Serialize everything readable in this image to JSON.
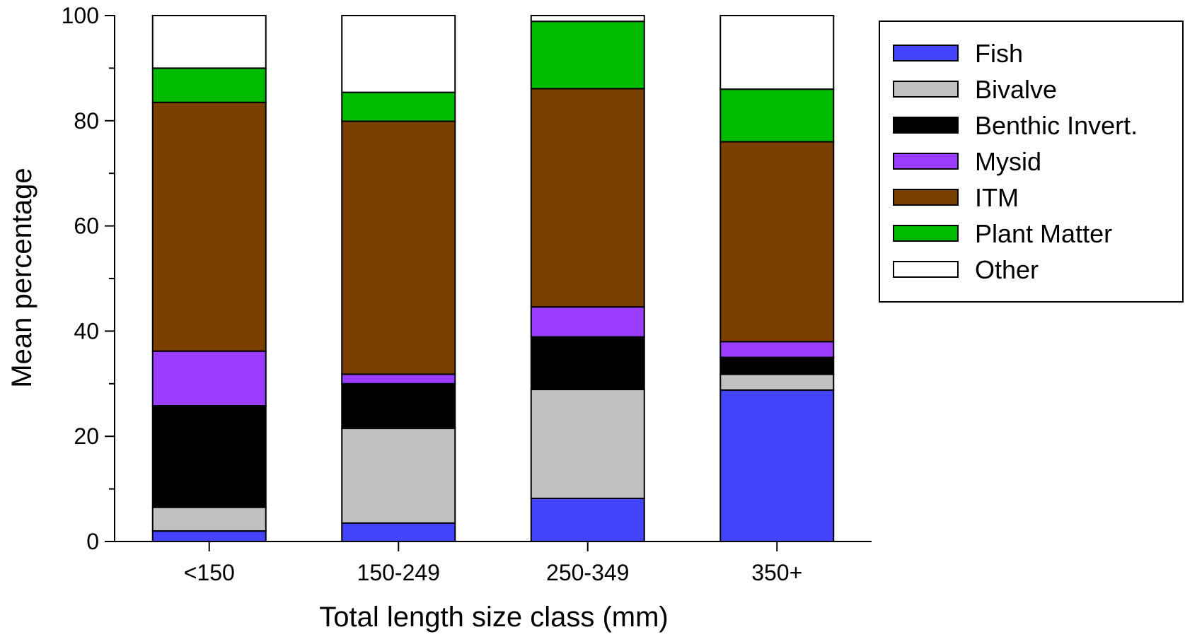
{
  "chart_data": {
    "type": "bar",
    "stacked": true,
    "title": "",
    "xlabel": "Total length size class (mm)",
    "ylabel": "Mean percentage",
    "ylim": [
      0,
      100
    ],
    "yticks": [
      0,
      20,
      40,
      60,
      80,
      100
    ],
    "grid": false,
    "legend_position": "top-right",
    "categories": [
      "<150",
      "150-249",
      "250-349",
      "350+"
    ],
    "series": [
      {
        "name": "Fish",
        "color": "#4444ff",
        "values": [
          2.0,
          3.5,
          8.2,
          28.8
        ]
      },
      {
        "name": "Bivalve",
        "color": "#c0c0c0",
        "values": [
          4.5,
          18.0,
          20.7,
          3.0
        ]
      },
      {
        "name": "Benthic Invert.",
        "color": "#000000",
        "values": [
          19.3,
          8.5,
          10.0,
          3.2
        ]
      },
      {
        "name": "Mysid",
        "color": "#9b3dff",
        "values": [
          10.4,
          1.8,
          5.7,
          3.0
        ]
      },
      {
        "name": "ITM",
        "color": "#7b3f00",
        "values": [
          47.3,
          48.1,
          41.5,
          38.0
        ]
      },
      {
        "name": "Plant Matter",
        "color": "#00bb00",
        "values": [
          6.5,
          5.5,
          12.8,
          10.0
        ]
      },
      {
        "name": "Other",
        "color": "#ffffff",
        "values": [
          10.0,
          14.6,
          1.1,
          14.0
        ]
      }
    ]
  }
}
